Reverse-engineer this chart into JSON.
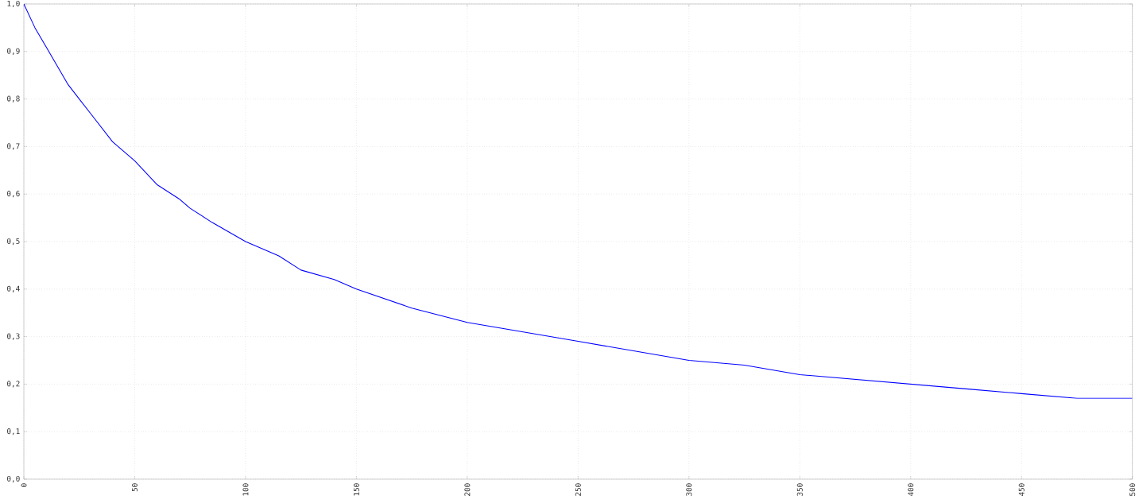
{
  "chart_data": {
    "type": "line",
    "x": [
      0,
      5,
      10,
      15,
      20,
      25,
      30,
      35,
      40,
      50,
      60,
      70,
      75,
      85,
      100,
      115,
      125,
      140,
      150,
      175,
      200,
      225,
      250,
      275,
      300,
      325,
      350,
      375,
      400,
      425,
      450,
      475,
      500
    ],
    "series": [
      {
        "color": "#0000ff",
        "values": [
          1.0,
          0.95,
          0.91,
          0.87,
          0.83,
          0.8,
          0.77,
          0.74,
          0.71,
          0.67,
          0.62,
          0.59,
          0.57,
          0.54,
          0.5,
          0.47,
          0.44,
          0.42,
          0.4,
          0.36,
          0.33,
          0.31,
          0.29,
          0.27,
          0.25,
          0.24,
          0.22,
          0.21,
          0.2,
          0.19,
          0.18,
          0.17,
          0.17
        ]
      }
    ],
    "xlim": [
      0,
      500
    ],
    "ylim": [
      0,
      1
    ],
    "xticks": [
      0,
      50,
      100,
      150,
      200,
      250,
      300,
      350,
      400,
      450,
      500
    ],
    "yticks": [
      {
        "value": 0,
        "label": "0,0"
      },
      {
        "value": 0.1,
        "label": "0,1"
      },
      {
        "value": 0.2,
        "label": "0,2"
      },
      {
        "value": 0.3,
        "label": "0,3"
      },
      {
        "value": 0.4,
        "label": "0,4"
      },
      {
        "value": 0.5,
        "label": "0,5"
      },
      {
        "value": 0.6,
        "label": "0,6"
      },
      {
        "value": 0.7,
        "label": "0,7"
      },
      {
        "value": 0.8,
        "label": "0,8"
      },
      {
        "value": 0.9,
        "label": "0,9"
      },
      {
        "value": 1,
        "label": "1,0"
      }
    ],
    "grid": true,
    "marker": "none",
    "line_style": "solid"
  }
}
